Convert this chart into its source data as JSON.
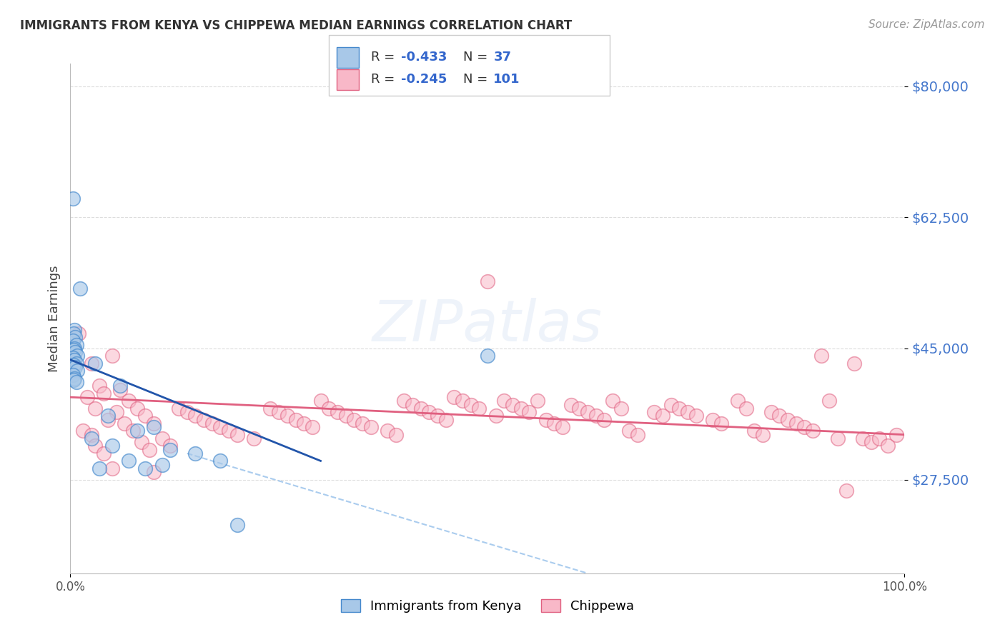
{
  "title": "IMMIGRANTS FROM KENYA VS CHIPPEWA MEDIAN EARNINGS CORRELATION CHART",
  "source": "Source: ZipAtlas.com",
  "ylabel": "Median Earnings",
  "y_ticks": [
    27500,
    45000,
    62500,
    80000
  ],
  "y_tick_labels": [
    "$27,500",
    "$45,000",
    "$62,500",
    "$80,000"
  ],
  "x_range": [
    0,
    100
  ],
  "y_range": [
    15000,
    83000
  ],
  "kenya_color": "#a8c8e8",
  "kenya_edge_color": "#4488cc",
  "kenya_line_color": "#2255aa",
  "chippewa_color": "#f8b8c8",
  "chippewa_edge_color": "#e06080",
  "chippewa_line_color": "#e06080",
  "dashed_line_color": "#aaccee",
  "background_color": "#ffffff",
  "grid_color": "#dddddd",
  "ytick_color": "#4477cc",
  "legend_R1": "-0.433",
  "legend_N1": "37",
  "legend_R2": "-0.245",
  "legend_N2": "101",
  "kenya_scatter": [
    [
      0.3,
      65000
    ],
    [
      1.2,
      53000
    ],
    [
      0.5,
      47500
    ],
    [
      0.4,
      47000
    ],
    [
      0.6,
      46500
    ],
    [
      0.3,
      46000
    ],
    [
      0.7,
      45500
    ],
    [
      0.5,
      45000
    ],
    [
      0.4,
      44800
    ],
    [
      0.6,
      44500
    ],
    [
      0.8,
      44000
    ],
    [
      0.3,
      43800
    ],
    [
      0.5,
      43500
    ],
    [
      0.7,
      43000
    ],
    [
      0.4,
      42800
    ],
    [
      0.6,
      42500
    ],
    [
      0.8,
      42000
    ],
    [
      0.3,
      41500
    ],
    [
      0.5,
      41000
    ],
    [
      0.4,
      40800
    ],
    [
      0.7,
      40500
    ],
    [
      3.0,
      43000
    ],
    [
      6.0,
      40000
    ],
    [
      4.5,
      36000
    ],
    [
      8.0,
      34000
    ],
    [
      10.0,
      34500
    ],
    [
      2.5,
      33000
    ],
    [
      5.0,
      32000
    ],
    [
      12.0,
      31500
    ],
    [
      7.0,
      30000
    ],
    [
      15.0,
      31000
    ],
    [
      3.5,
      29000
    ],
    [
      9.0,
      29000
    ],
    [
      11.0,
      29500
    ],
    [
      18.0,
      30000
    ],
    [
      20.0,
      21500
    ],
    [
      50.0,
      44000
    ]
  ],
  "chippewa_scatter": [
    [
      1.0,
      47000
    ],
    [
      2.5,
      43000
    ],
    [
      5.0,
      44000
    ],
    [
      3.5,
      40000
    ],
    [
      4.0,
      39000
    ],
    [
      6.0,
      39500
    ],
    [
      2.0,
      38500
    ],
    [
      7.0,
      38000
    ],
    [
      3.0,
      37000
    ],
    [
      8.0,
      37000
    ],
    [
      5.5,
      36500
    ],
    [
      9.0,
      36000
    ],
    [
      4.5,
      35500
    ],
    [
      6.5,
      35000
    ],
    [
      10.0,
      35000
    ],
    [
      1.5,
      34000
    ],
    [
      7.5,
      34000
    ],
    [
      2.5,
      33500
    ],
    [
      11.0,
      33000
    ],
    [
      8.5,
      32500
    ],
    [
      3.0,
      32000
    ],
    [
      12.0,
      32000
    ],
    [
      9.5,
      31500
    ],
    [
      4.0,
      31000
    ],
    [
      13.0,
      37000
    ],
    [
      14.0,
      36500
    ],
    [
      15.0,
      36000
    ],
    [
      16.0,
      35500
    ],
    [
      17.0,
      35000
    ],
    [
      18.0,
      34500
    ],
    [
      19.0,
      34000
    ],
    [
      20.0,
      33500
    ],
    [
      22.0,
      33000
    ],
    [
      24.0,
      37000
    ],
    [
      25.0,
      36500
    ],
    [
      26.0,
      36000
    ],
    [
      27.0,
      35500
    ],
    [
      28.0,
      35000
    ],
    [
      29.0,
      34500
    ],
    [
      30.0,
      38000
    ],
    [
      31.0,
      37000
    ],
    [
      32.0,
      36500
    ],
    [
      33.0,
      36000
    ],
    [
      34.0,
      35500
    ],
    [
      35.0,
      35000
    ],
    [
      36.0,
      34500
    ],
    [
      38.0,
      34000
    ],
    [
      39.0,
      33500
    ],
    [
      40.0,
      38000
    ],
    [
      41.0,
      37500
    ],
    [
      42.0,
      37000
    ],
    [
      43.0,
      36500
    ],
    [
      44.0,
      36000
    ],
    [
      45.0,
      35500
    ],
    [
      46.0,
      38500
    ],
    [
      47.0,
      38000
    ],
    [
      48.0,
      37500
    ],
    [
      49.0,
      37000
    ],
    [
      50.0,
      54000
    ],
    [
      51.0,
      36000
    ],
    [
      52.0,
      38000
    ],
    [
      53.0,
      37500
    ],
    [
      54.0,
      37000
    ],
    [
      55.0,
      36500
    ],
    [
      56.0,
      38000
    ],
    [
      57.0,
      35500
    ],
    [
      58.0,
      35000
    ],
    [
      59.0,
      34500
    ],
    [
      60.0,
      37500
    ],
    [
      61.0,
      37000
    ],
    [
      62.0,
      36500
    ],
    [
      63.0,
      36000
    ],
    [
      64.0,
      35500
    ],
    [
      65.0,
      38000
    ],
    [
      66.0,
      37000
    ],
    [
      67.0,
      34000
    ],
    [
      68.0,
      33500
    ],
    [
      70.0,
      36500
    ],
    [
      71.0,
      36000
    ],
    [
      72.0,
      37500
    ],
    [
      73.0,
      37000
    ],
    [
      74.0,
      36500
    ],
    [
      75.0,
      36000
    ],
    [
      77.0,
      35500
    ],
    [
      78.0,
      35000
    ],
    [
      80.0,
      38000
    ],
    [
      81.0,
      37000
    ],
    [
      82.0,
      34000
    ],
    [
      83.0,
      33500
    ],
    [
      84.0,
      36500
    ],
    [
      85.0,
      36000
    ],
    [
      86.0,
      35500
    ],
    [
      87.0,
      35000
    ],
    [
      88.0,
      34500
    ],
    [
      89.0,
      34000
    ],
    [
      90.0,
      44000
    ],
    [
      91.0,
      38000
    ],
    [
      92.0,
      33000
    ],
    [
      93.0,
      26000
    ],
    [
      94.0,
      43000
    ],
    [
      95.0,
      33000
    ],
    [
      96.0,
      32500
    ],
    [
      97.0,
      33000
    ],
    [
      98.0,
      32000
    ],
    [
      99.0,
      33500
    ],
    [
      10.0,
      28500
    ],
    [
      5.0,
      29000
    ]
  ],
  "kenya_line_x": [
    0,
    30
  ],
  "kenya_line_y": [
    43500,
    30000
  ],
  "chippewa_line_x": [
    0,
    100
  ],
  "chippewa_line_y": [
    38500,
    33500
  ],
  "dash_line_x": [
    14,
    62
  ],
  "dash_line_y": [
    31000,
    15000
  ]
}
